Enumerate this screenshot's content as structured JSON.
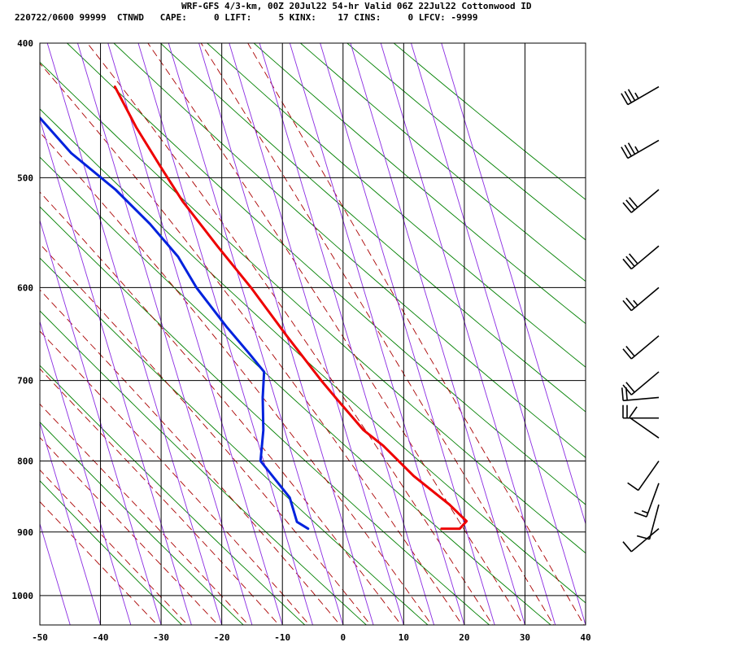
{
  "header": {
    "line1": "WRF-GFS 4/3-km, 00Z 20Jul22 54-hr Valid 06Z 22Jul22 Cottonwood ID",
    "line2": "220722/0600 99999  CTNWD   CAPE:     0 LIFT:     5 KINX:    17 CINS:     0 LFCV: -9999"
  },
  "chart_data": {
    "type": "line",
    "subtype": "skew-T log-p sounding",
    "title": "WRF-GFS 4/3-km, 00Z 20Jul22 54-hr Valid 06Z 22Jul22 Cottonwood ID",
    "xlabel": "",
    "ylabel": "",
    "x_ticks": [
      -50,
      -40,
      -30,
      -20,
      -10,
      0,
      10,
      20,
      30,
      40
    ],
    "y_ticks": [
      400,
      500,
      600,
      700,
      800,
      900,
      1000
    ],
    "xlim": [
      -50,
      40
    ],
    "ylim": [
      1050,
      400
    ],
    "y_scale": "log pressure (hPa)",
    "skew": "isotherms slanted to the right",
    "grid": true,
    "colors": {
      "temperature": "#ee0000",
      "dewpoint": "#0022dd",
      "isotherm": "#8a2be2",
      "dry_adiabat": "#008000",
      "moist_adiabat": "#aa0000",
      "barb": "#000000"
    },
    "series": [
      {
        "key": "temperature",
        "points": [
          [
            895,
            21
          ],
          [
            895,
            24
          ],
          [
            884,
            25.5
          ],
          [
            860,
            23.5
          ],
          [
            820,
            19
          ],
          [
            780,
            15.5
          ],
          [
            760,
            13
          ],
          [
            720,
            10
          ],
          [
            700,
            8.5
          ],
          [
            650,
            5
          ],
          [
            600,
            1.5
          ],
          [
            560,
            -2
          ],
          [
            520,
            -5.5
          ],
          [
            490,
            -7.5
          ],
          [
            460,
            -9.5
          ],
          [
            430,
            -11
          ]
        ]
      },
      {
        "key": "dewpoint",
        "points": [
          [
            895,
            -1
          ],
          [
            885,
            -2.5
          ],
          [
            850,
            -2.5
          ],
          [
            800,
            -5.5
          ],
          [
            760,
            -3.5
          ],
          [
            720,
            -2
          ],
          [
            690,
            -0.5
          ],
          [
            670,
            -2
          ],
          [
            640,
            -4.5
          ],
          [
            600,
            -7.5
          ],
          [
            570,
            -9
          ],
          [
            540,
            -12
          ],
          [
            510,
            -16
          ],
          [
            480,
            -21.5
          ],
          [
            460,
            -24
          ],
          [
            430,
            -28
          ]
        ]
      }
    ],
    "wind_barbs": [
      {
        "p": 895,
        "dir": 230,
        "speed": 10
      },
      {
        "p": 860,
        "dir": 195,
        "speed": 10
      },
      {
        "p": 830,
        "dir": 200,
        "speed": 15
      },
      {
        "p": 800,
        "dir": 215,
        "speed": 10
      },
      {
        "p": 770,
        "dir": 305,
        "speed": 10
      },
      {
        "p": 745,
        "dir": 270,
        "speed": 20
      },
      {
        "p": 720,
        "dir": 265,
        "speed": 20
      },
      {
        "p": 690,
        "dir": 230,
        "speed": 20
      },
      {
        "p": 650,
        "dir": 230,
        "speed": 20
      },
      {
        "p": 600,
        "dir": 230,
        "speed": 25
      },
      {
        "p": 560,
        "dir": 230,
        "speed": 30
      },
      {
        "p": 510,
        "dir": 230,
        "speed": 30
      },
      {
        "p": 470,
        "dir": 240,
        "speed": 35
      },
      {
        "p": 430,
        "dir": 240,
        "speed": 35
      }
    ]
  }
}
